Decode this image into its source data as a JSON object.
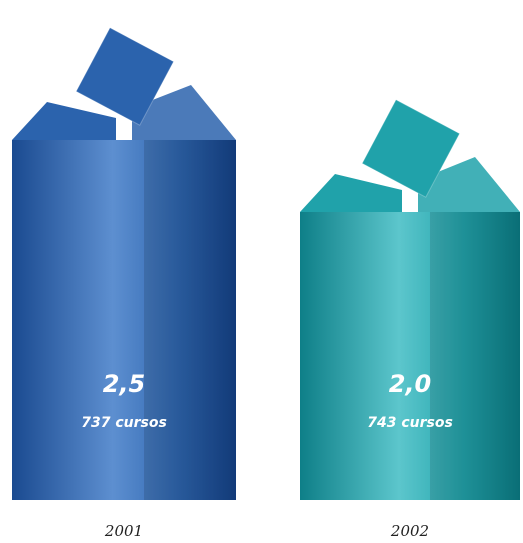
{
  "chart_data": {
    "type": "bar",
    "categories": [
      "2001",
      "2002"
    ],
    "values": [
      2.5,
      2.0
    ],
    "value_labels": [
      "2,5",
      "2,0"
    ],
    "annotations": [
      "737 cursos",
      "743 cursos"
    ],
    "colors": [
      "#2b63ad",
      "#20a2aa"
    ]
  }
}
